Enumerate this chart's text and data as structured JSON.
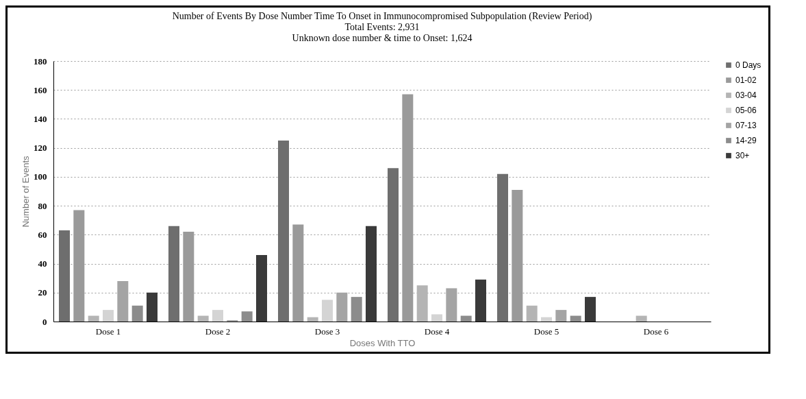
{
  "chart_data": {
    "type": "bar",
    "title": "Number of Events By Dose Number Time To Onset in Immunocompromised Subpopulation (Review Period)",
    "subtitle": "Total Events: 2,931",
    "annotations": [
      "Unknown dose number & time to Onset: 1,624"
    ],
    "xlabel": "Doses With TTO",
    "ylabel": "Number of Events",
    "categories": [
      "Dose 1",
      "Dose 2",
      "Dose 3",
      "Dose 4",
      "Dose 5",
      "Dose 6"
    ],
    "series": [
      {
        "name": "0 Days",
        "color": "#6e6e6e",
        "values": [
          63,
          66,
          125,
          106,
          102,
          0
        ]
      },
      {
        "name": "01-02",
        "color": "#9a9a9a",
        "values": [
          77,
          62,
          67,
          157,
          91,
          0
        ]
      },
      {
        "name": "03-04",
        "color": "#b4b4b4",
        "values": [
          4,
          4,
          3,
          25,
          11,
          4
        ]
      },
      {
        "name": "05-06",
        "color": "#d4d4d4",
        "values": [
          8,
          8,
          15,
          5,
          3,
          0
        ]
      },
      {
        "name": "07-13",
        "color": "#a4a4a4",
        "values": [
          28,
          1,
          20,
          23,
          8,
          0
        ]
      },
      {
        "name": "14-29",
        "color": "#8c8c8c",
        "values": [
          11,
          7,
          17,
          4,
          4,
          0
        ]
      },
      {
        "name": "30+",
        "color": "#3a3a3a",
        "values": [
          20,
          46,
          66,
          29,
          17,
          0
        ]
      }
    ],
    "ylim": [
      0,
      180
    ],
    "yticks": [
      0,
      20,
      40,
      60,
      80,
      100,
      120,
      140,
      160,
      180
    ],
    "grid": "y",
    "legend": "right"
  }
}
